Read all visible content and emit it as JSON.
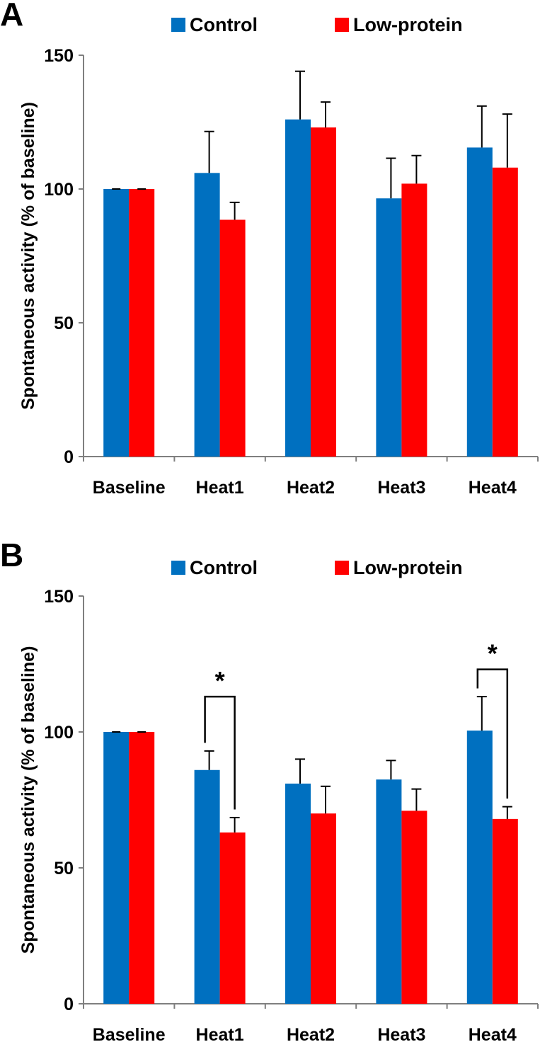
{
  "colors": {
    "control": "#0070c0",
    "low_protein": "#ff0000"
  },
  "chart_data": [
    {
      "panel": "A",
      "type": "bar",
      "ylabel": "Spontaneous activity (% of baseline)",
      "ylim": [
        0,
        150
      ],
      "yticks": [
        0,
        50,
        100,
        150
      ],
      "categories": [
        "Baseline",
        "Heat1",
        "Heat2",
        "Heat3",
        "Heat4"
      ],
      "legend": [
        "Control",
        "Low-protein"
      ],
      "series": [
        {
          "name": "Control",
          "values": [
            100,
            106,
            126,
            96.5,
            115.5
          ],
          "errors": [
            0,
            15.5,
            18,
            15,
            15.5
          ]
        },
        {
          "name": "Low-protein",
          "values": [
            100,
            88.5,
            123,
            102,
            108
          ],
          "errors": [
            0,
            6.5,
            9.5,
            10.5,
            20
          ]
        }
      ],
      "significance": []
    },
    {
      "panel": "B",
      "type": "bar",
      "ylabel": "Spontaneous activity (% of baseline)",
      "ylim": [
        0,
        150
      ],
      "yticks": [
        0,
        50,
        100,
        150
      ],
      "categories": [
        "Baseline",
        "Heat1",
        "Heat2",
        "Heat3",
        "Heat4"
      ],
      "legend": [
        "Control",
        "Low-protein"
      ],
      "series": [
        {
          "name": "Control",
          "values": [
            100,
            86,
            81,
            82.5,
            100.5
          ],
          "errors": [
            0,
            7,
            9,
            7,
            12.5
          ]
        },
        {
          "name": "Low-protein",
          "values": [
            100,
            63,
            70,
            71,
            68
          ],
          "errors": [
            0,
            5.5,
            10,
            8,
            4.5
          ]
        }
      ],
      "significance": [
        {
          "category": "Heat1",
          "label": "*",
          "top": 113
        },
        {
          "category": "Heat4",
          "label": "*",
          "top": 123
        }
      ]
    }
  ]
}
